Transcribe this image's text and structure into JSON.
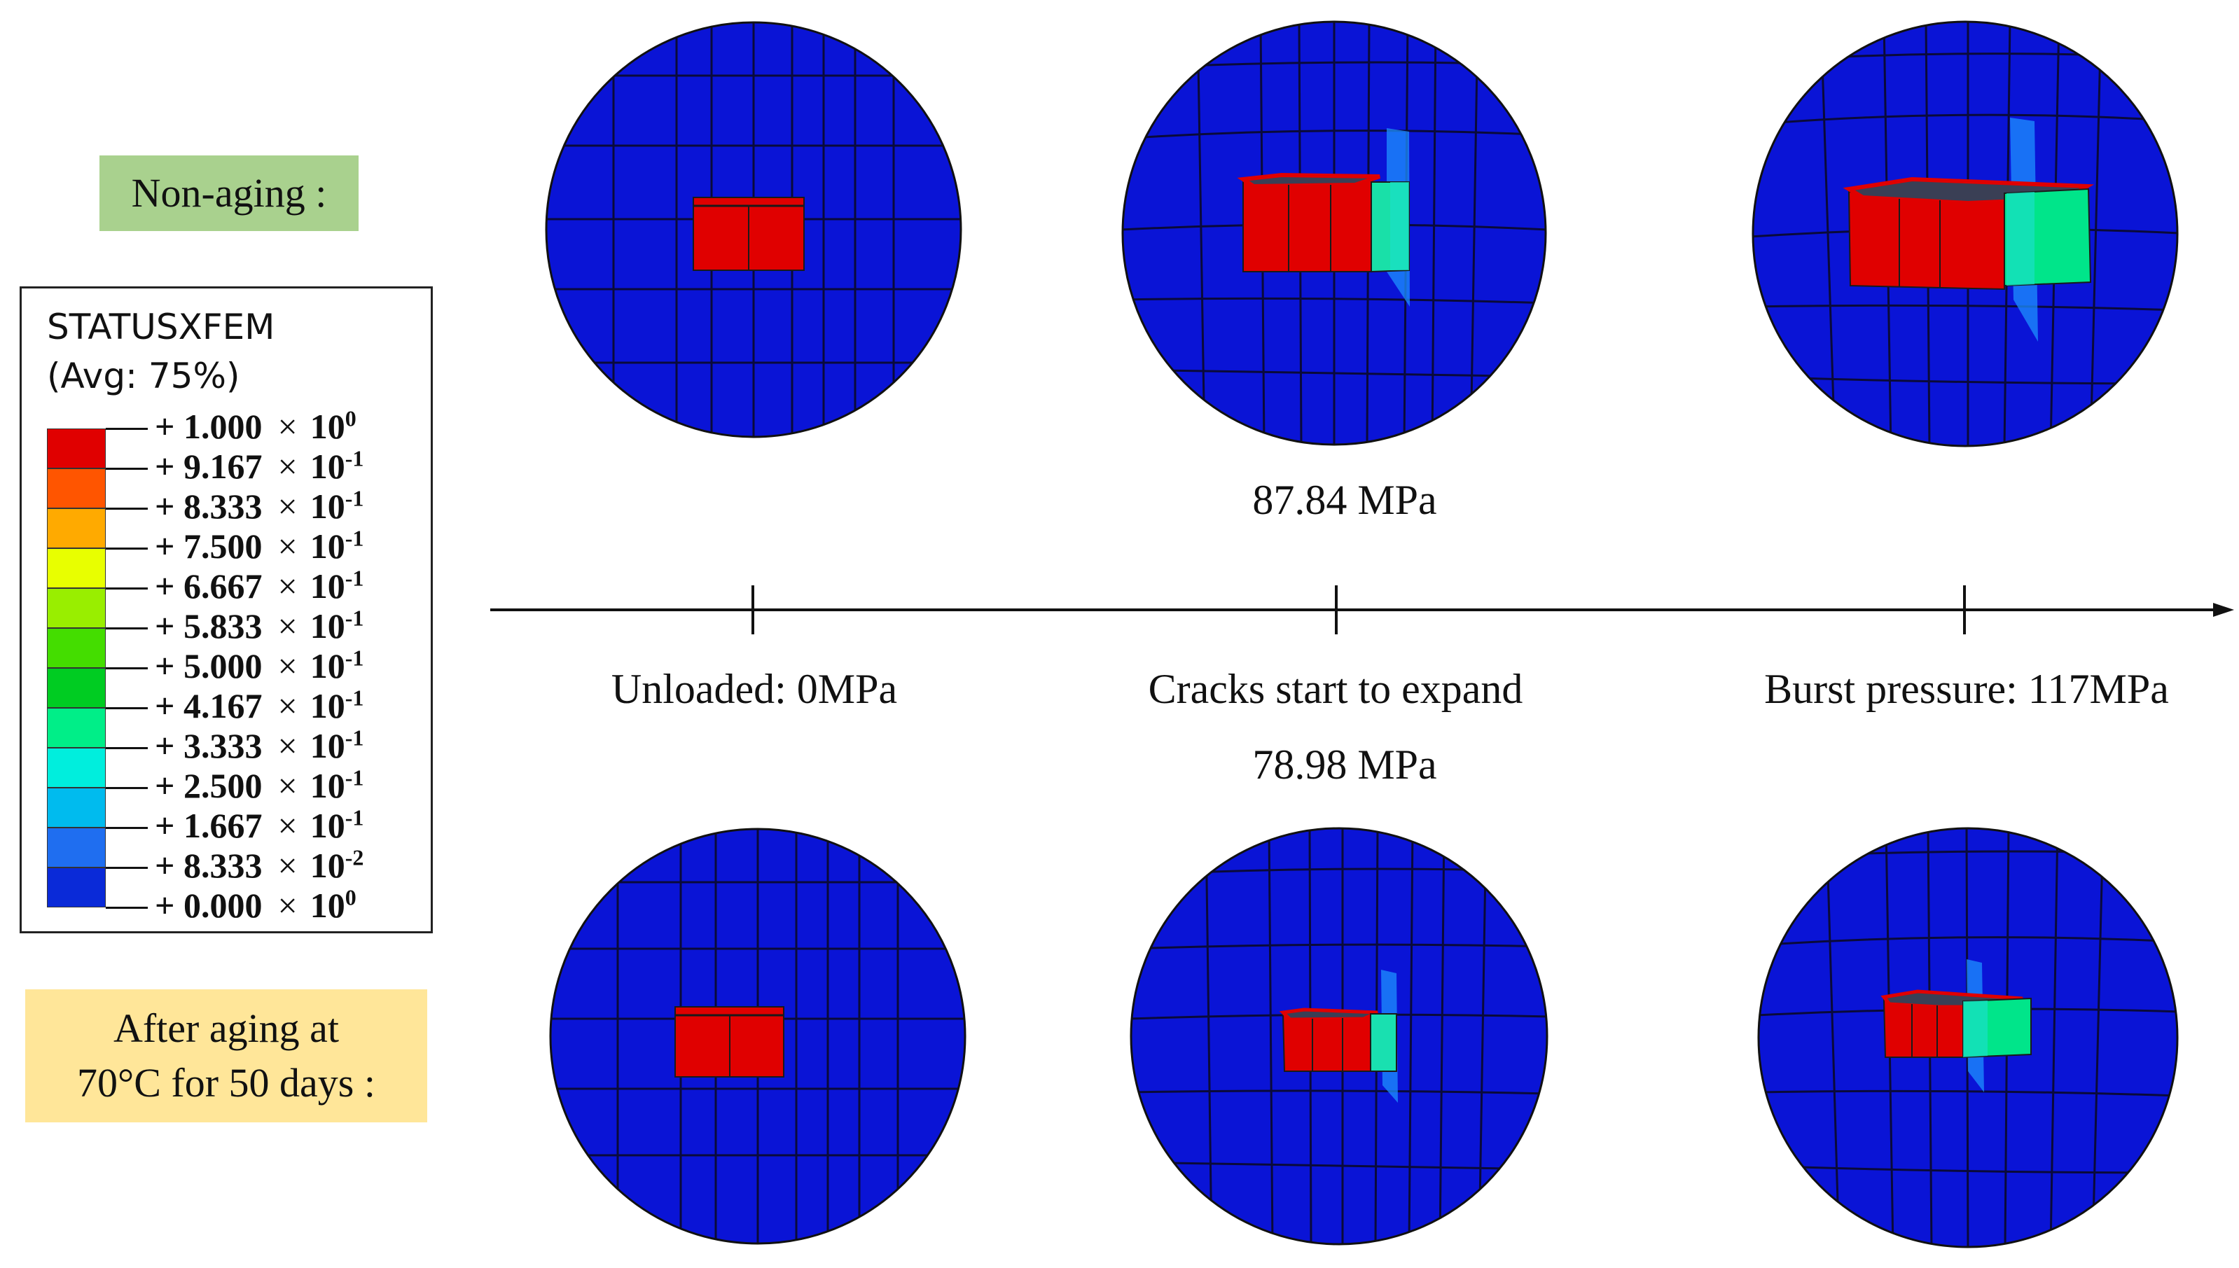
{
  "labels": {
    "non_aging": "Non-aging :",
    "after_aging_line1": "After aging at",
    "after_aging_line2": "70°C for 50 days :"
  },
  "legend": {
    "title": "STATUSXFEM",
    "subtitle": "(Avg: 75%)",
    "entries": [
      {
        "mantissa": "+ 1.000",
        "exp": "0"
      },
      {
        "mantissa": "+ 9.167",
        "exp": "-1"
      },
      {
        "mantissa": "+ 8.333",
        "exp": "-1"
      },
      {
        "mantissa": "+ 7.500",
        "exp": "-1"
      },
      {
        "mantissa": "+ 6.667",
        "exp": "-1"
      },
      {
        "mantissa": "+ 5.833",
        "exp": "-1"
      },
      {
        "mantissa": "+ 5.000",
        "exp": "-1"
      },
      {
        "mantissa": "+ 4.167",
        "exp": "-1"
      },
      {
        "mantissa": "+ 3.333",
        "exp": "-1"
      },
      {
        "mantissa": "+ 2.500",
        "exp": "-1"
      },
      {
        "mantissa": "+ 1.667",
        "exp": "-1"
      },
      {
        "mantissa": "+ 8.333",
        "exp": "-2"
      },
      {
        "mantissa": "+ 0.000",
        "exp": "0"
      }
    ],
    "times_symbol": "×",
    "base": "10",
    "colors": [
      "#e00000",
      "#ff5500",
      "#ffaa00",
      "#e8ff00",
      "#99ee00",
      "#44dd00",
      "#00cc22",
      "#00ee88",
      "#00eedd",
      "#00bbee",
      "#1f6ef0",
      "#0a2ad8"
    ]
  },
  "timeline": {
    "unloaded": "Unloaded: 0MPa",
    "crack_start": "Cracks start to expand",
    "burst": "Burst pressure: 117MPa",
    "non_aging_crack_pressure": "87.84 MPa",
    "aged_crack_pressure": "78.98 MPa"
  },
  "colors": {
    "mesh_background": "#0a14d6",
    "mesh_line": "#0a0a3a",
    "crack_red": "#e00000",
    "crack_green": "#00e58a",
    "crack_cyan": "#19e0c8",
    "crack_plane": "#1e90ff",
    "non_aging_box": "#a9d18e",
    "after_aging_box": "#ffe699"
  }
}
